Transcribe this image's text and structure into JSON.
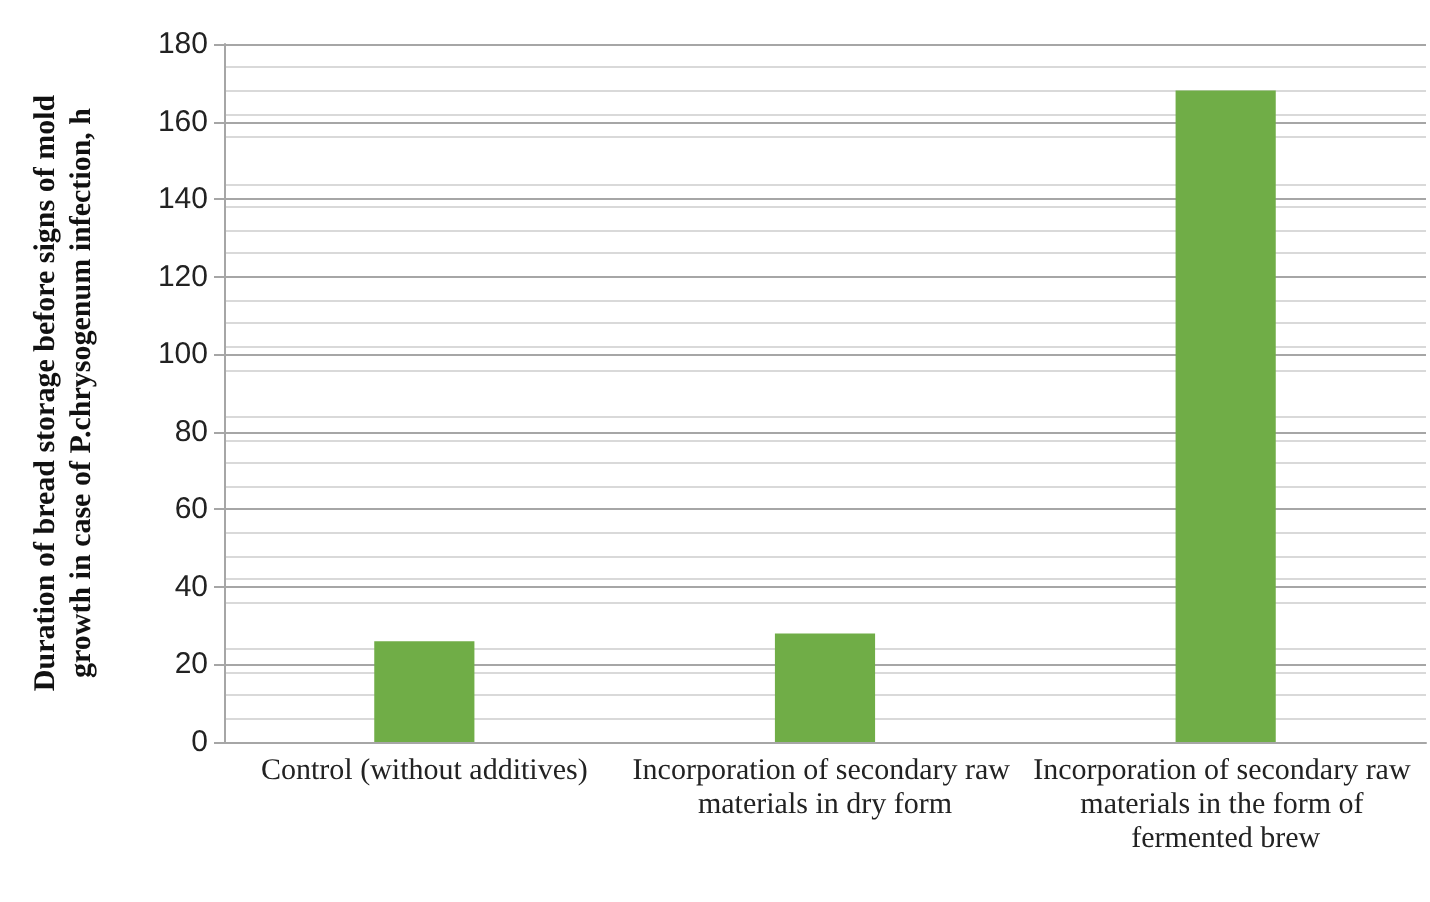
{
  "chart_data": {
    "type": "bar",
    "ylabel": "Duration of bread storage before signs of mold growth in case of P.chrysogenum infection, h",
    "categories": [
      "Control (without additives)",
      "Incorporation of secondary raw materials in dry form",
      "Incorporation of secondary raw materials in the form of fermented brew"
    ],
    "values": [
      26,
      28,
      168
    ],
    "color": "#70ad47",
    "ylim": [
      0,
      180
    ],
    "yticks": [
      0,
      20,
      40,
      60,
      80,
      100,
      120,
      140,
      160,
      180
    ],
    "grid": true
  }
}
